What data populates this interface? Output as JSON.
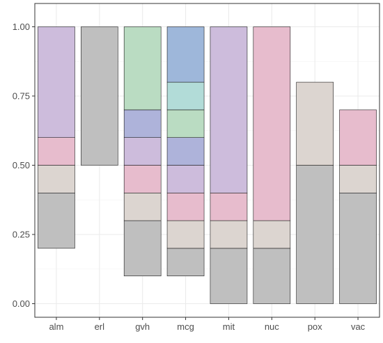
{
  "chart_data": {
    "type": "bar",
    "subtype": "stacked-range",
    "categories": [
      "alm",
      "erl",
      "gvh",
      "mcg",
      "mit",
      "nuc",
      "pox",
      "vac"
    ],
    "ylim": [
      0,
      1
    ],
    "yticks": [
      "0.00",
      "0.25",
      "0.50",
      "0.75",
      "1.00"
    ],
    "grid": true,
    "legend": "none",
    "colors": {
      "grey": "#bfbfbf",
      "beige": "#dcd5d0",
      "pink": "#e7bccd",
      "lavender": "#cdbcdc",
      "periwinkle": "#aeb3da",
      "mint": "#badcc2",
      "aqua": "#b2dcd8",
      "blue": "#9eb7da"
    },
    "bars": [
      {
        "category": "alm",
        "segments": [
          {
            "from": 0.2,
            "to": 0.4,
            "color": "grey"
          },
          {
            "from": 0.4,
            "to": 0.5,
            "color": "beige"
          },
          {
            "from": 0.5,
            "to": 0.6,
            "color": "pink"
          },
          {
            "from": 0.6,
            "to": 1.0,
            "color": "lavender"
          }
        ]
      },
      {
        "category": "erl",
        "segments": [
          {
            "from": 0.5,
            "to": 1.0,
            "color": "grey"
          }
        ]
      },
      {
        "category": "gvh",
        "segments": [
          {
            "from": 0.1,
            "to": 0.3,
            "color": "grey"
          },
          {
            "from": 0.3,
            "to": 0.4,
            "color": "beige"
          },
          {
            "from": 0.4,
            "to": 0.5,
            "color": "pink"
          },
          {
            "from": 0.5,
            "to": 0.6,
            "color": "lavender"
          },
          {
            "from": 0.6,
            "to": 0.7,
            "color": "periwinkle"
          },
          {
            "from": 0.7,
            "to": 1.0,
            "color": "mint"
          }
        ]
      },
      {
        "category": "mcg",
        "segments": [
          {
            "from": 0.1,
            "to": 0.2,
            "color": "grey"
          },
          {
            "from": 0.2,
            "to": 0.3,
            "color": "beige"
          },
          {
            "from": 0.3,
            "to": 0.4,
            "color": "pink"
          },
          {
            "from": 0.4,
            "to": 0.5,
            "color": "lavender"
          },
          {
            "from": 0.5,
            "to": 0.6,
            "color": "periwinkle"
          },
          {
            "from": 0.6,
            "to": 0.7,
            "color": "mint"
          },
          {
            "from": 0.7,
            "to": 0.8,
            "color": "aqua"
          },
          {
            "from": 0.8,
            "to": 1.0,
            "color": "blue"
          }
        ]
      },
      {
        "category": "mit",
        "segments": [
          {
            "from": 0.0,
            "to": 0.2,
            "color": "grey"
          },
          {
            "from": 0.2,
            "to": 0.3,
            "color": "beige"
          },
          {
            "from": 0.3,
            "to": 0.4,
            "color": "pink"
          },
          {
            "from": 0.4,
            "to": 1.0,
            "color": "lavender"
          }
        ]
      },
      {
        "category": "nuc",
        "segments": [
          {
            "from": 0.0,
            "to": 0.2,
            "color": "grey"
          },
          {
            "from": 0.2,
            "to": 0.3,
            "color": "beige"
          },
          {
            "from": 0.3,
            "to": 1.0,
            "color": "pink"
          }
        ]
      },
      {
        "category": "pox",
        "segments": [
          {
            "from": 0.0,
            "to": 0.5,
            "color": "grey"
          },
          {
            "from": 0.5,
            "to": 0.8,
            "color": "beige"
          }
        ]
      },
      {
        "category": "vac",
        "segments": [
          {
            "from": 0.0,
            "to": 0.4,
            "color": "grey"
          },
          {
            "from": 0.4,
            "to": 0.5,
            "color": "beige"
          },
          {
            "from": 0.5,
            "to": 0.7,
            "color": "pink"
          }
        ]
      }
    ]
  }
}
